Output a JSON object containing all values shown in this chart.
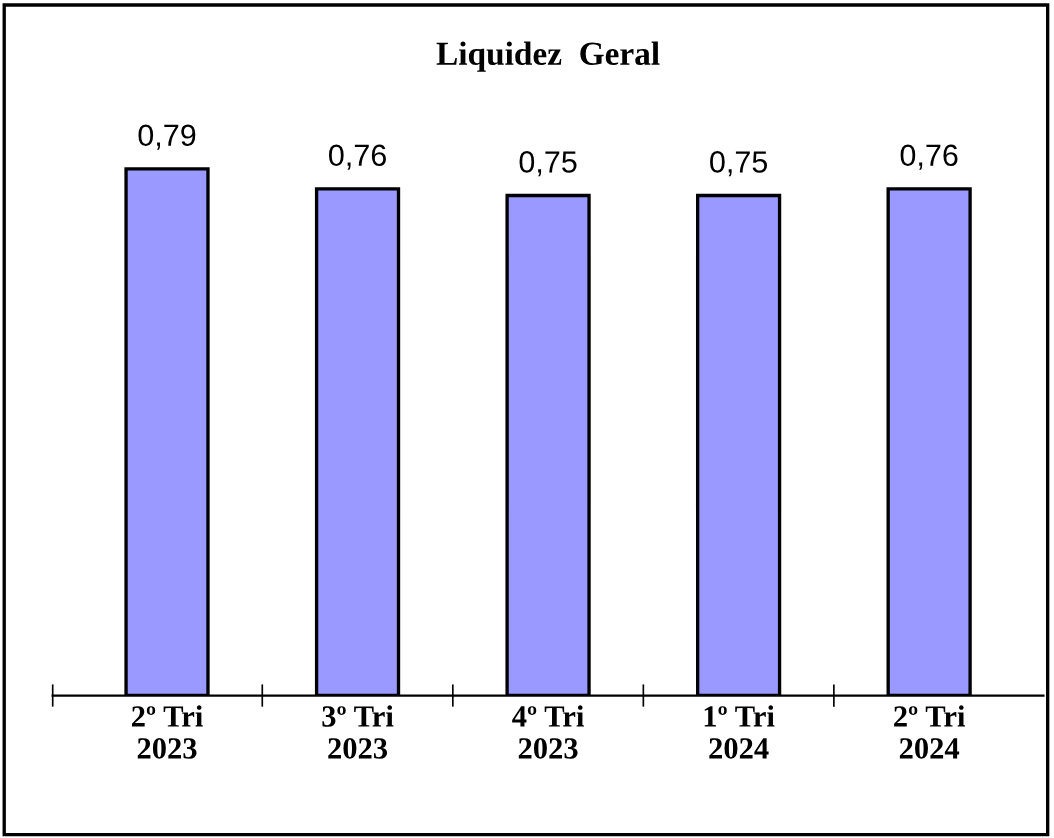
{
  "chart_data": {
    "type": "bar",
    "title": "Liquidez  Geral",
    "categories": [
      "2º Tri\n2023",
      "3º Tri\n2023",
      "4º Tri\n2023",
      "1º Tri\n2024",
      "2º Tri\n2024"
    ],
    "values": [
      0.79,
      0.76,
      0.75,
      0.75,
      0.76
    ],
    "value_labels": [
      "0,79",
      "0,76",
      "0,75",
      "0,75",
      "0,76"
    ],
    "color": "#9999ff",
    "tick_labels": "x",
    "grid": false,
    "legend": false
  }
}
